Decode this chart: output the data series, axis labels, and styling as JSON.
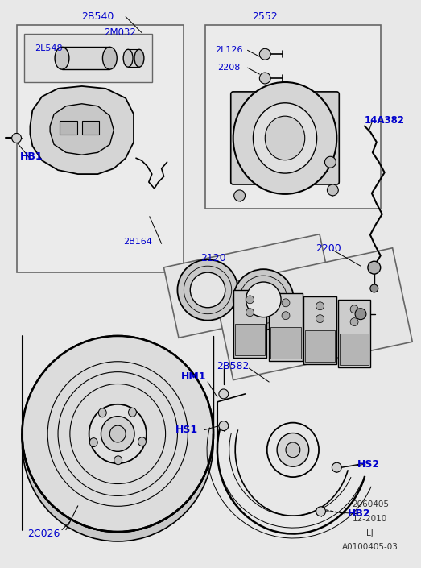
{
  "bg_color": "#e8e8e8",
  "label_color": "#0000cc",
  "line_color": "#000000",
  "footer_texts": [
    "2060405",
    "12-2010",
    "LJ",
    "A0100405-03"
  ]
}
